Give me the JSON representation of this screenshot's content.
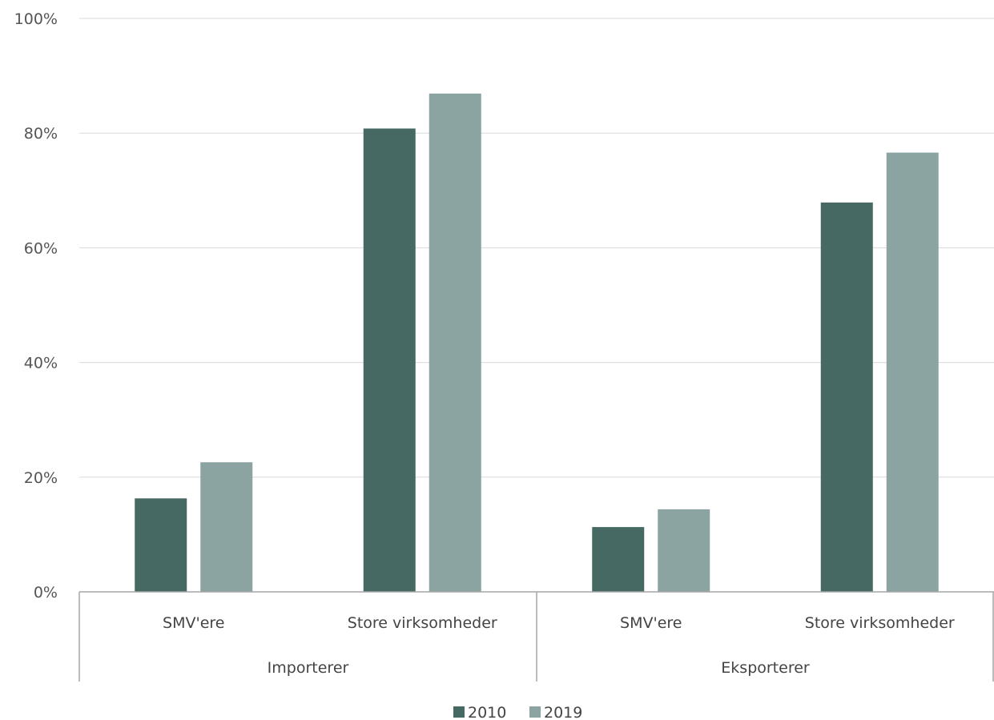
{
  "chart_data": {
    "type": "bar",
    "title": "",
    "xlabel": "",
    "ylabel": "",
    "ylim": [
      0,
      100
    ],
    "yticks": [
      "0%",
      "20%",
      "40%",
      "60%",
      "80%",
      "100%"
    ],
    "grid": true,
    "legend_position": "bottom",
    "groups": [
      {
        "label": "Importerer",
        "categories": [
          "SMV'ere",
          "Store virksomheder"
        ]
      },
      {
        "label": "Eksporterer",
        "categories": [
          "SMV'ere",
          "Store virksomheder"
        ]
      }
    ],
    "series": [
      {
        "name": "2010",
        "color": "#466964",
        "values": [
          16.3,
          80.8,
          11.3,
          67.9
        ]
      },
      {
        "name": "2019",
        "color": "#8ba4a1",
        "values": [
          22.6,
          86.9,
          14.4,
          76.6
        ]
      }
    ]
  }
}
